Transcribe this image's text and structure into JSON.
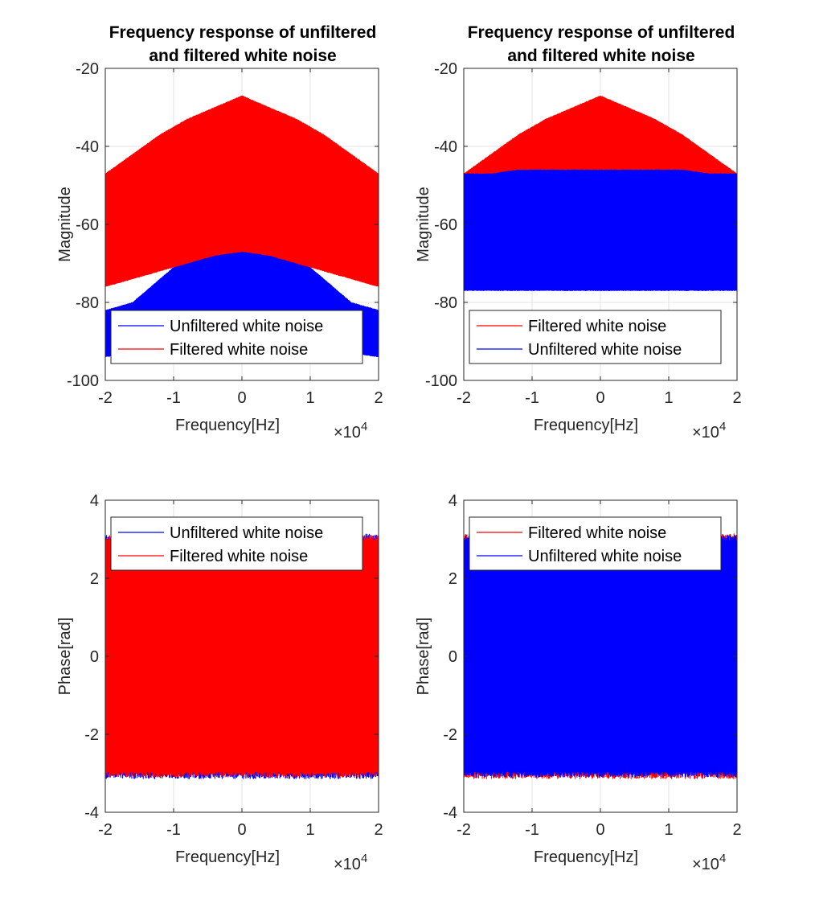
{
  "chart_data": [
    {
      "type": "line",
      "title": "Frequency response of unfiltered and filtered white noise",
      "title_lines": [
        "Frequency response of unfiltered",
        "and filtered white noise"
      ],
      "xlabel": "Frequency[Hz]",
      "ylabel": "Magnitude",
      "x_exponent_label": "×10",
      "x_exponent": "4",
      "xlim": [
        -20000,
        20000
      ],
      "ylim": [
        -100,
        -20
      ],
      "x_ticks": [
        -20000,
        -10000,
        0,
        10000,
        20000
      ],
      "x_tick_labels": [
        "-2",
        "-1",
        "0",
        "1",
        "2"
      ],
      "y_ticks": [
        -100,
        -80,
        -60,
        -40,
        -20
      ],
      "y_tick_labels": [
        "-100",
        "-80",
        "-60",
        "-40",
        "-20"
      ],
      "grid": true,
      "legend_position": "bottom-left",
      "legend": [
        "Unfiltered white noise",
        "Filtered white noise"
      ],
      "draw_order": [
        "Unfiltered white noise",
        "Filtered white noise"
      ],
      "series": [
        {
          "name": "Unfiltered white noise",
          "color": "#0000ff",
          "x": [
            -20000,
            -16000,
            -12000,
            -8000,
            -4000,
            0,
            4000,
            8000,
            12000,
            16000,
            20000
          ],
          "upper": [
            -82,
            -80,
            -74,
            -68,
            -62,
            -58,
            -62,
            -68,
            -74,
            -80,
            -82
          ],
          "lower": [
            -94,
            -93,
            -91,
            -89,
            -87,
            -86,
            -87,
            -89,
            -91,
            -93,
            -94
          ]
        },
        {
          "name": "Filtered white noise",
          "color": "#ff0000",
          "x": [
            -20000,
            -16000,
            -12000,
            -8000,
            -4000,
            0,
            4000,
            8000,
            12000,
            16000,
            20000
          ],
          "upper": [
            -47,
            -42,
            -37,
            -33,
            -30,
            -27,
            -30,
            -33,
            -37,
            -42,
            -47
          ],
          "lower": [
            -76,
            -74,
            -72,
            -70,
            -68,
            -67,
            -68,
            -70,
            -72,
            -74,
            -76
          ]
        }
      ]
    },
    {
      "type": "line",
      "title": "Frequency response of unfiltered and filtered white noise",
      "title_lines": [
        "Frequency response of unfiltered",
        "and filtered white noise"
      ],
      "xlabel": "Frequency[Hz]",
      "ylabel": "Magnitude",
      "x_exponent_label": "×10",
      "x_exponent": "4",
      "xlim": [
        -20000,
        20000
      ],
      "ylim": [
        -100,
        -20
      ],
      "x_ticks": [
        -20000,
        -10000,
        0,
        10000,
        20000
      ],
      "x_tick_labels": [
        "-2",
        "-1",
        "0",
        "1",
        "2"
      ],
      "y_ticks": [
        -100,
        -80,
        -60,
        -40,
        -20
      ],
      "y_tick_labels": [
        "-100",
        "-80",
        "-60",
        "-40",
        "-20"
      ],
      "grid": true,
      "legend_position": "bottom-left",
      "legend": [
        "Filtered white noise",
        "Unfiltered white noise"
      ],
      "draw_order": [
        "Filtered white noise",
        "Unfiltered white noise"
      ],
      "series": [
        {
          "name": "Filtered white noise",
          "color": "#ff0000",
          "x": [
            -20000,
            -16000,
            -12000,
            -8000,
            -4000,
            0,
            4000,
            8000,
            12000,
            16000,
            20000
          ],
          "upper": [
            -47,
            -42,
            -37,
            -33,
            -30,
            -27,
            -30,
            -33,
            -37,
            -42,
            -47
          ],
          "lower": [
            -76,
            -74,
            -72,
            -70,
            -68,
            -67,
            -68,
            -70,
            -72,
            -74,
            -76
          ]
        },
        {
          "name": "Unfiltered white noise",
          "color": "#0000ff",
          "x": [
            -20000,
            -16000,
            -12000,
            -8000,
            -4000,
            0,
            4000,
            8000,
            12000,
            16000,
            20000
          ],
          "upper": [
            -47,
            -47,
            -46,
            -46,
            -46,
            -46,
            -46,
            -46,
            -46,
            -47,
            -47
          ],
          "lower": [
            -77,
            -77,
            -77,
            -77,
            -77,
            -77,
            -77,
            -77,
            -77,
            -77,
            -77
          ]
        }
      ]
    },
    {
      "type": "line",
      "title": "",
      "xlabel": "Frequency[Hz]",
      "ylabel": "Phase[rad]",
      "x_exponent_label": "×10",
      "x_exponent": "4",
      "xlim": [
        -20000,
        20000
      ],
      "ylim": [
        -4,
        4
      ],
      "x_ticks": [
        -20000,
        -10000,
        0,
        10000,
        20000
      ],
      "x_tick_labels": [
        "-2",
        "-1",
        "0",
        "1",
        "2"
      ],
      "y_ticks": [
        -4,
        -2,
        0,
        2,
        4
      ],
      "y_tick_labels": [
        "-4",
        "-2",
        "0",
        "2",
        "4"
      ],
      "grid": true,
      "legend_position": "top-left",
      "legend": [
        "Unfiltered white noise",
        "Filtered white noise"
      ],
      "draw_order": [
        "Unfiltered white noise",
        "Filtered white noise"
      ],
      "series": [
        {
          "name": "Unfiltered white noise",
          "color": "#0000ff",
          "x": [
            -20000,
            20000
          ],
          "upper": [
            3.1416,
            3.1416
          ],
          "lower": [
            -3.1416,
            -3.1416
          ]
        },
        {
          "name": "Filtered white noise",
          "color": "#ff0000",
          "x": [
            -20000,
            20000
          ],
          "upper": [
            3.1,
            3.1
          ],
          "lower": [
            -3.1,
            -3.1
          ]
        }
      ]
    },
    {
      "type": "line",
      "title": "",
      "xlabel": "Frequency[Hz]",
      "ylabel": "Phase[rad]",
      "x_exponent_label": "×10",
      "x_exponent": "4",
      "xlim": [
        -20000,
        20000
      ],
      "ylim": [
        -4,
        4
      ],
      "x_ticks": [
        -20000,
        -10000,
        0,
        10000,
        20000
      ],
      "x_tick_labels": [
        "-2",
        "-1",
        "0",
        "1",
        "2"
      ],
      "y_ticks": [
        -4,
        -2,
        0,
        2,
        4
      ],
      "y_tick_labels": [
        "-4",
        "-2",
        "0",
        "2",
        "4"
      ],
      "grid": true,
      "legend_position": "top-left",
      "legend": [
        "Filtered white noise",
        "Unfiltered white noise"
      ],
      "draw_order": [
        "Filtered white noise",
        "Unfiltered white noise"
      ],
      "series": [
        {
          "name": "Filtered white noise",
          "color": "#ff0000",
          "x": [
            -20000,
            20000
          ],
          "upper": [
            3.1416,
            3.1416
          ],
          "lower": [
            -3.1416,
            -3.1416
          ]
        },
        {
          "name": "Unfiltered white noise",
          "color": "#0000ff",
          "x": [
            -20000,
            20000
          ],
          "upper": [
            3.1,
            3.1
          ],
          "lower": [
            -3.1,
            -3.1
          ]
        }
      ]
    }
  ]
}
